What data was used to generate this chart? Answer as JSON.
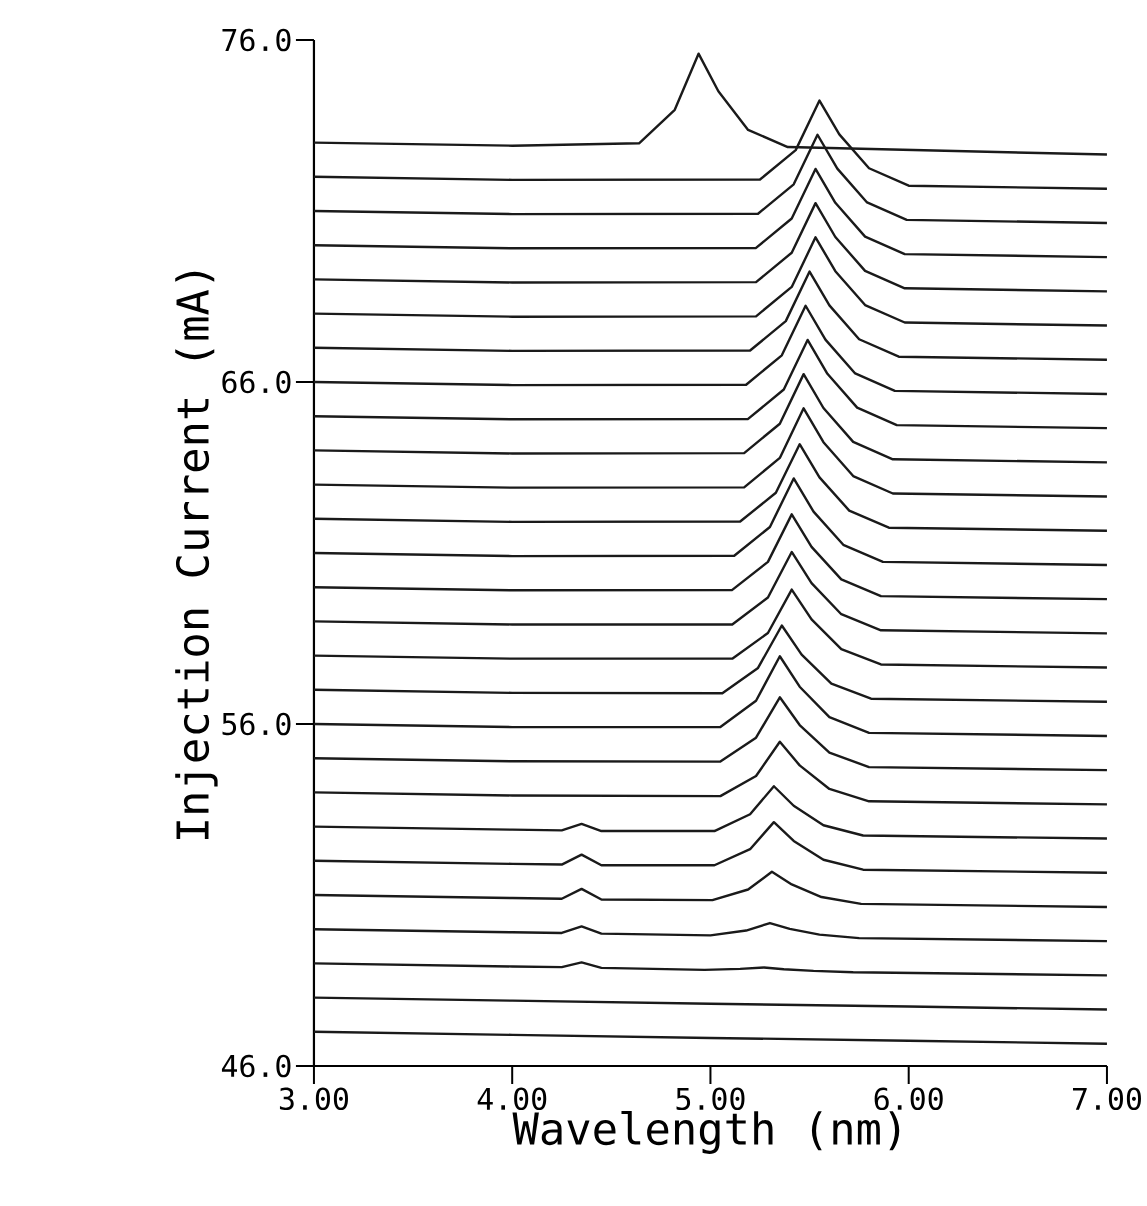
{
  "chart_data": {
    "type": "line",
    "xlabel": "Wavelength (nm)",
    "ylabel": "Injection Current (mA)",
    "xlim": [
      3.0,
      7.0
    ],
    "ylim": [
      46.0,
      76.0
    ],
    "xticks": [
      {
        "value": 3.0,
        "label": "3.00"
      },
      {
        "value": 4.0,
        "label": "4.00"
      },
      {
        "value": 5.0,
        "label": "5.00"
      },
      {
        "value": 6.0,
        "label": "6.00"
      },
      {
        "value": 7.0,
        "label": "7.00"
      }
    ],
    "yticks": [
      {
        "value": 46,
        "label": "46.0"
      },
      {
        "value": 56,
        "label": "56.0"
      },
      {
        "value": 66,
        "label": "66.0"
      },
      {
        "value": 76,
        "label": "76.0"
      }
    ],
    "marker": "none",
    "line_style": "solid",
    "series": [
      {
        "color": "#1a1a1a",
        "x": [
          3,
          4,
          4.64,
          4.82,
          4.94,
          5.04,
          5.19,
          5.39,
          7
        ],
        "values": [
          73,
          72.91,
          72.98,
          73.96,
          75.6,
          74.5,
          73.37,
          72.87,
          72.65
        ]
      },
      {
        "color": "#1a1a1a",
        "x": [
          3,
          4,
          5.25,
          5.43,
          5.55,
          5.65,
          5.8,
          6.0,
          7
        ],
        "values": [
          72,
          71.91,
          71.92,
          72.78,
          74.23,
          73.24,
          72.25,
          71.74,
          71.65
        ]
      },
      {
        "color": "#1a1a1a",
        "x": [
          3,
          4,
          5.24,
          5.42,
          5.54,
          5.64,
          5.79,
          5.99,
          7
        ],
        "values": [
          71,
          70.91,
          70.92,
          71.78,
          73.23,
          72.24,
          71.25,
          70.74,
          70.65
        ]
      },
      {
        "color": "#1a1a1a",
        "x": [
          3,
          4,
          5.23,
          5.41,
          5.53,
          5.63,
          5.78,
          5.98,
          7
        ],
        "values": [
          70,
          69.91,
          69.92,
          70.78,
          72.23,
          71.24,
          70.25,
          69.74,
          69.65
        ]
      },
      {
        "color": "#1a1a1a",
        "x": [
          3,
          4,
          5.23,
          5.41,
          5.53,
          5.63,
          5.78,
          5.98,
          7
        ],
        "values": [
          69,
          68.91,
          68.92,
          69.78,
          71.23,
          70.24,
          69.25,
          68.74,
          68.65
        ]
      },
      {
        "color": "#1a1a1a",
        "x": [
          3,
          4,
          5.23,
          5.41,
          5.53,
          5.63,
          5.78,
          5.98,
          7
        ],
        "values": [
          68,
          67.91,
          67.92,
          68.78,
          70.23,
          69.24,
          68.25,
          67.74,
          67.65
        ]
      },
      {
        "color": "#1a1a1a",
        "x": [
          3,
          4,
          5.2,
          5.38,
          5.5,
          5.6,
          5.75,
          5.95,
          7
        ],
        "values": [
          67,
          66.91,
          66.92,
          67.78,
          69.23,
          68.24,
          67.25,
          66.74,
          66.65
        ]
      },
      {
        "color": "#1a1a1a",
        "x": [
          3,
          4,
          5.18,
          5.36,
          5.48,
          5.58,
          5.73,
          5.93,
          7
        ],
        "values": [
          66,
          65.91,
          65.92,
          66.78,
          68.23,
          67.24,
          66.25,
          65.74,
          65.65
        ]
      },
      {
        "color": "#1a1a1a",
        "x": [
          3,
          4,
          5.19,
          5.37,
          5.49,
          5.59,
          5.74,
          5.94,
          7
        ],
        "values": [
          65,
          64.91,
          64.92,
          65.78,
          67.23,
          66.24,
          65.25,
          64.74,
          64.65
        ]
      },
      {
        "color": "#1a1a1a",
        "x": [
          3,
          4,
          5.17,
          5.35,
          5.47,
          5.57,
          5.72,
          5.92,
          7
        ],
        "values": [
          64,
          63.91,
          63.92,
          64.78,
          66.23,
          65.24,
          64.25,
          63.74,
          63.65
        ]
      },
      {
        "color": "#1a1a1a",
        "x": [
          3,
          4,
          5.17,
          5.35,
          5.47,
          5.57,
          5.72,
          5.92,
          7
        ],
        "values": [
          63,
          62.91,
          62.92,
          63.78,
          65.23,
          64.24,
          63.25,
          62.74,
          62.65
        ]
      },
      {
        "color": "#1a1a1a",
        "x": [
          3,
          4,
          5.15,
          5.33,
          5.45,
          5.55,
          5.7,
          5.9,
          7
        ],
        "values": [
          62,
          61.91,
          61.92,
          62.76,
          64.18,
          63.21,
          62.24,
          61.74,
          61.65
        ]
      },
      {
        "color": "#1a1a1a",
        "x": [
          3,
          4,
          5.12,
          5.3,
          5.42,
          5.52,
          5.67,
          5.87,
          7
        ],
        "values": [
          61,
          60.91,
          60.92,
          61.76,
          63.18,
          62.21,
          61.24,
          60.74,
          60.65
        ]
      },
      {
        "color": "#1a1a1a",
        "x": [
          3,
          4,
          5.11,
          5.29,
          5.41,
          5.51,
          5.66,
          5.86,
          7
        ],
        "values": [
          60,
          59.91,
          59.92,
          60.74,
          62.13,
          61.18,
          60.23,
          59.74,
          59.65
        ]
      },
      {
        "color": "#1a1a1a",
        "x": [
          3,
          4,
          5.11,
          5.29,
          5.41,
          5.51,
          5.66,
          5.86,
          7
        ],
        "values": [
          59,
          58.91,
          58.91,
          59.7,
          61.03,
          60.12,
          59.21,
          58.74,
          58.65
        ]
      },
      {
        "color": "#1a1a1a",
        "x": [
          3,
          4,
          5.11,
          5.29,
          5.41,
          5.51,
          5.66,
          5.86,
          7
        ],
        "values": [
          58,
          57.91,
          57.91,
          58.66,
          59.93,
          59.06,
          58.19,
          57.74,
          57.65
        ]
      },
      {
        "color": "#1a1a1a",
        "x": [
          3,
          4,
          5.06,
          5.24,
          5.36,
          5.46,
          5.61,
          5.81,
          7
        ],
        "values": [
          57,
          56.91,
          56.9,
          57.64,
          58.88,
          58.03,
          57.18,
          56.74,
          56.65
        ]
      },
      {
        "color": "#1a1a1a",
        "x": [
          3,
          4,
          5.05,
          5.23,
          5.35,
          5.45,
          5.6,
          5.8,
          7
        ],
        "values": [
          56,
          55.91,
          55.91,
          56.68,
          57.98,
          57.09,
          56.2,
          55.74,
          55.65
        ]
      },
      {
        "color": "#1a1a1a",
        "x": [
          3,
          4,
          5.05,
          5.23,
          5.35,
          5.45,
          5.6,
          5.8,
          7
        ],
        "values": [
          55,
          54.91,
          54.9,
          55.6,
          56.78,
          55.97,
          55.16,
          54.74,
          54.65
        ]
      },
      {
        "color": "#1a1a1a",
        "x": [
          3,
          4,
          5.05,
          5.23,
          5.35,
          5.45,
          5.6,
          5.8,
          7
        ],
        "values": [
          54,
          53.91,
          53.89,
          54.48,
          55.48,
          54.79,
          54.1,
          53.74,
          53.65
        ]
      },
      {
        "color": "#1a1a1a",
        "x": [
          3,
          4,
          4.25,
          4.35,
          4.45,
          5.02,
          5.2,
          5.32,
          5.42,
          5.57,
          5.77,
          7
        ],
        "values": [
          53,
          52.91,
          52.89,
          53.08,
          52.87,
          52.87,
          53.36,
          54.18,
          53.61,
          53.04,
          52.74,
          52.65
        ]
      },
      {
        "color": "#1a1a1a",
        "x": [
          3,
          4,
          4.25,
          4.35,
          4.45,
          5.02,
          5.2,
          5.32,
          5.42,
          5.57,
          5.77,
          7
        ],
        "values": [
          52,
          51.91,
          51.89,
          52.18,
          51.87,
          51.87,
          52.34,
          53.13,
          52.58,
          52.03,
          51.74,
          51.65
        ]
      },
      {
        "color": "#1a1a1a",
        "x": [
          3,
          4,
          4.25,
          4.35,
          4.45,
          5.01,
          5.19,
          5.31,
          5.41,
          5.56,
          5.76,
          7
        ],
        "values": [
          51,
          50.91,
          50.89,
          51.18,
          50.87,
          50.85,
          51.16,
          51.68,
          51.31,
          50.94,
          50.74,
          50.65
        ]
      },
      {
        "color": "#1a1a1a",
        "x": [
          3,
          4,
          4.25,
          4.35,
          4.45,
          5.0,
          5.18,
          5.3,
          5.4,
          5.55,
          5.75,
          7
        ],
        "values": [
          50,
          49.91,
          49.89,
          50.08,
          49.87,
          49.82,
          49.96,
          50.18,
          50.01,
          49.84,
          49.74,
          49.65
        ]
      },
      {
        "color": "#1a1a1a",
        "x": [
          3,
          4,
          4.25,
          4.35,
          4.45,
          4.97,
          5.15,
          5.27,
          5.37,
          5.52,
          5.72,
          7
        ],
        "values": [
          49,
          48.91,
          48.89,
          49.03,
          48.87,
          48.81,
          48.84,
          48.88,
          48.83,
          48.78,
          48.74,
          48.65
        ]
      },
      {
        "color": "#1a1a1a",
        "x": [
          3,
          4,
          5.0,
          6.0,
          7
        ],
        "values": [
          48,
          47.91,
          47.82,
          47.74,
          47.65
        ]
      },
      {
        "color": "#1a1a1a",
        "x": [
          3,
          4,
          5.0,
          6.0,
          7
        ],
        "values": [
          47,
          46.91,
          46.82,
          46.74,
          46.65
        ]
      }
    ]
  }
}
